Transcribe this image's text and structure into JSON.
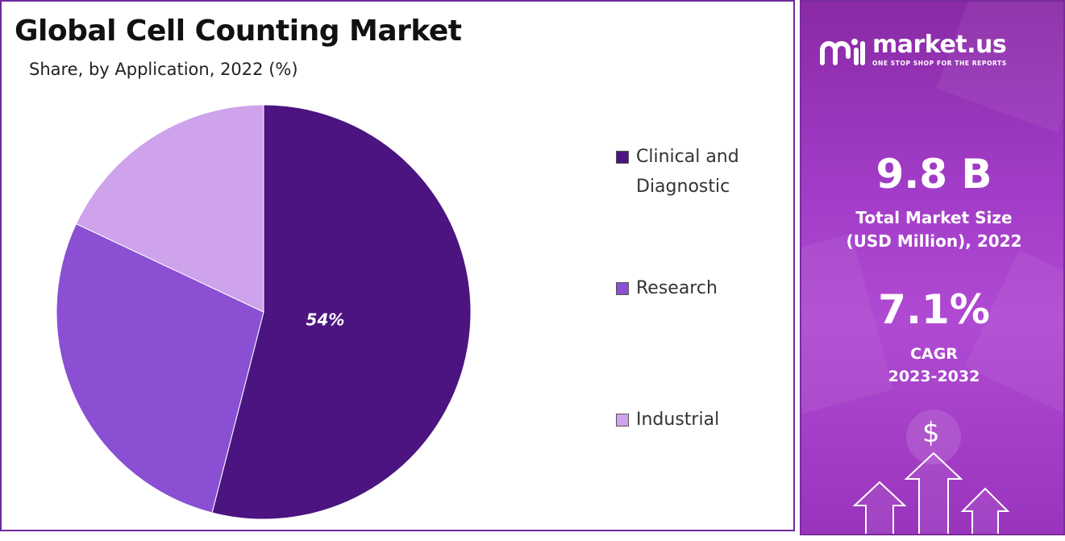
{
  "chart_data": {
    "type": "pie",
    "title": "Global Cell Counting Market",
    "subtitle": "Share, by Application, 2022 (%)",
    "categories": [
      "Clinical and Diagnostic",
      "Research",
      "Industrial"
    ],
    "values": [
      54,
      28,
      18
    ],
    "data_labels": [
      "54%",
      "",
      ""
    ],
    "colors": [
      "#4b1480",
      "#8a4fd2",
      "#cfa2ec"
    ],
    "legend_position": "right"
  },
  "side_panel": {
    "brand_name": "market.us",
    "brand_tagline": "ONE STOP SHOP FOR THE REPORTS",
    "market_size_value": "9.8 B",
    "market_size_label_line1": "Total Market Size",
    "market_size_label_line2": "(USD Million), 2022",
    "cagr_value": "7.1%",
    "cagr_label": "CAGR",
    "cagr_period": "2023-2032",
    "dollar_symbol": "$",
    "background_color": "#a23cc8",
    "logo_icon": "market-us-logo-icon",
    "decor_icon": "growth-arrows-icon"
  }
}
